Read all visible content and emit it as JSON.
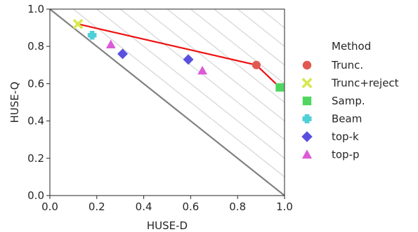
{
  "chart_data": {
    "type": "scatter",
    "xlabel": "HUSE-D",
    "ylabel": "HUSE-Q",
    "xlim": [
      0,
      1
    ],
    "ylim": [
      0,
      1
    ],
    "xticks": [
      "0.0",
      "0.2",
      "0.4",
      "0.6",
      "0.8",
      "1.0"
    ],
    "yticks": [
      "0.0",
      "0.2",
      "0.4",
      "0.6",
      "0.8",
      "1.0"
    ],
    "grid": false,
    "diagonal_line": {
      "from": [
        0,
        1
      ],
      "to": [
        1,
        0
      ],
      "color": "#808080"
    },
    "hatch_lines": "light gray diagonal lines above the x+y=1 line",
    "pareto_line": {
      "color": "#ee1111",
      "points": [
        [
          0.12,
          0.92
        ],
        [
          0.88,
          0.7
        ],
        [
          0.98,
          0.58
        ]
      ]
    },
    "legend": {
      "title": "Method",
      "placement": "right"
    },
    "series": [
      {
        "name": "Trunc.",
        "marker": "circle",
        "color": "#e05a52",
        "points": [
          [
            0.88,
            0.7
          ]
        ]
      },
      {
        "name": "Trunc+reject",
        "marker": "x",
        "color": "#d7e84e",
        "points": [
          [
            0.12,
            0.92
          ]
        ]
      },
      {
        "name": "Samp.",
        "marker": "square",
        "color": "#4ed660",
        "points": [
          [
            0.98,
            0.58
          ]
        ]
      },
      {
        "name": "Beam",
        "marker": "plus",
        "color": "#4fcfd8",
        "points": [
          [
            0.18,
            0.86
          ]
        ]
      },
      {
        "name": "top-k",
        "marker": "diamond",
        "color": "#5a50e0",
        "points": [
          [
            0.31,
            0.76
          ],
          [
            0.59,
            0.73
          ]
        ]
      },
      {
        "name": "top-p",
        "marker": "triangle",
        "color": "#dc5ad8",
        "points": [
          [
            0.26,
            0.81
          ],
          [
            0.65,
            0.67
          ]
        ]
      }
    ]
  }
}
